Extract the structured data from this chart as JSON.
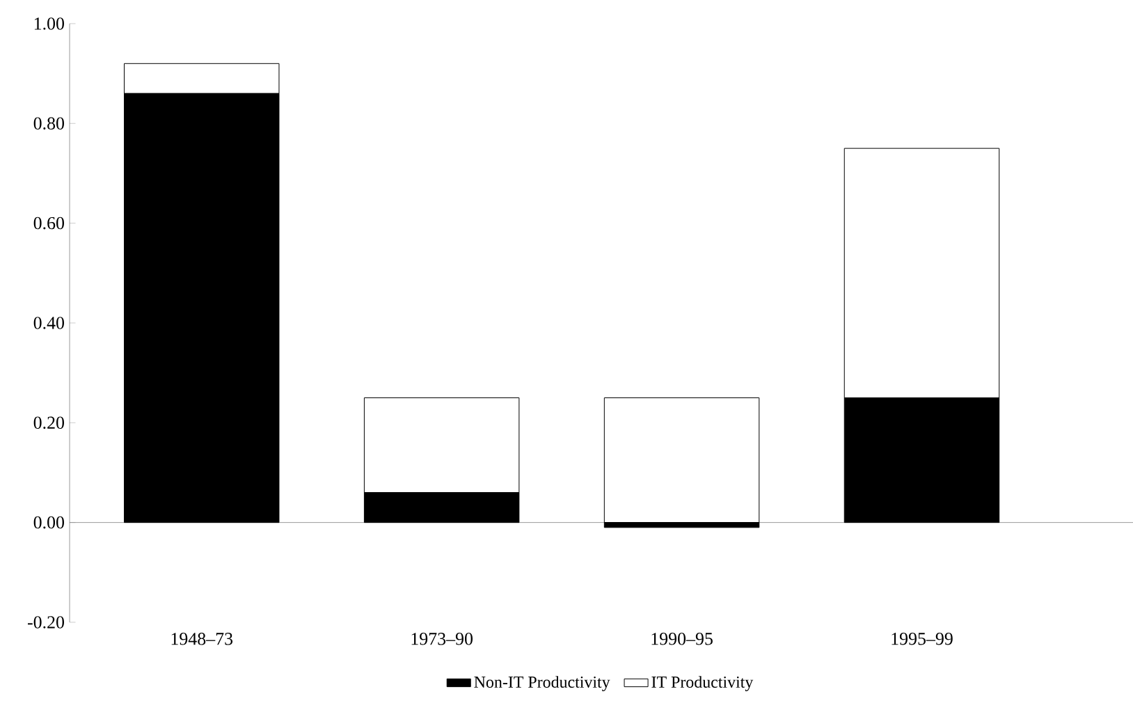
{
  "chart_data": {
    "type": "bar",
    "stacked": true,
    "categories": [
      "1948–73",
      "1973–90",
      "1990–95",
      "1995–99"
    ],
    "series": [
      {
        "name": "Non-IT Productivity",
        "color": "#000000",
        "values": [
          0.86,
          0.06,
          -0.01,
          0.25
        ]
      },
      {
        "name": "IT Productivity",
        "color": "#ffffff",
        "values": [
          0.06,
          0.19,
          0.25,
          0.5
        ]
      }
    ],
    "ylim": [
      -0.2,
      1.0
    ],
    "yticks": [
      {
        "value": -0.2,
        "label": "-0.20"
      },
      {
        "value": 0,
        "label": "0.00"
      },
      {
        "value": 0.2,
        "label": "0.20"
      },
      {
        "value": 0.4,
        "label": "0.40"
      },
      {
        "value": 0.6,
        "label": "0.60"
      },
      {
        "value": 0.8,
        "label": "0.80"
      },
      {
        "value": 1.0,
        "label": "1.00"
      }
    ],
    "legend": "bottom"
  }
}
